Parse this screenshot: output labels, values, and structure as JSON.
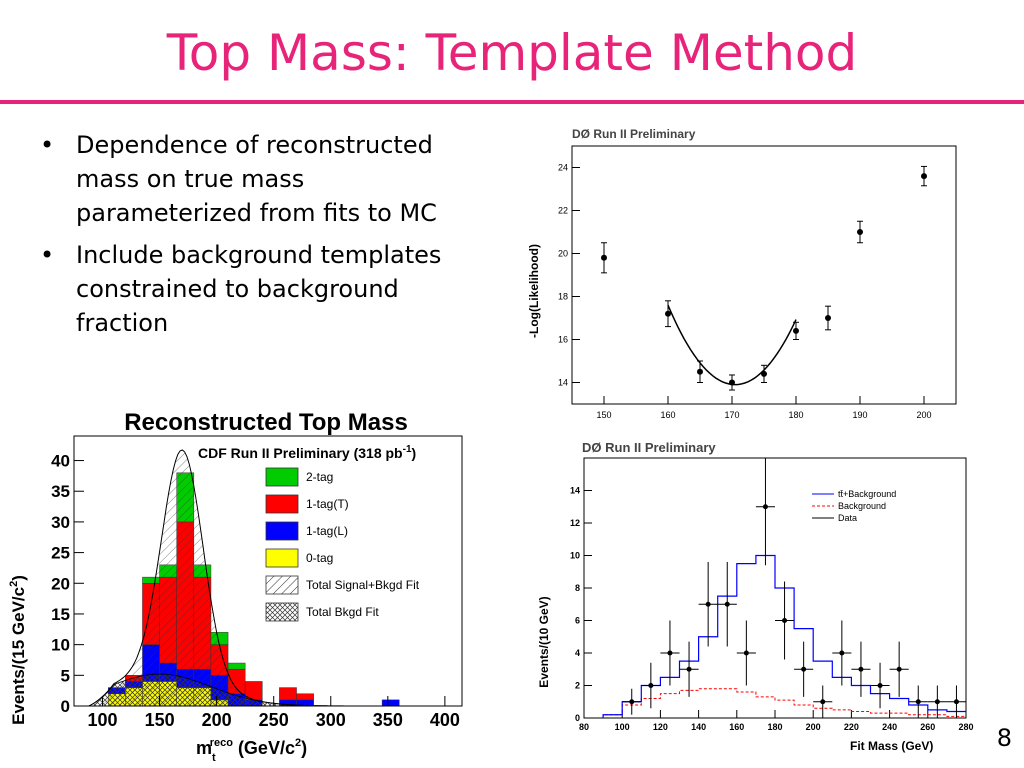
{
  "slide": {
    "title": "Top Mass: Template Method",
    "page_number": "8",
    "bullets": [
      "Dependence of reconstructed mass on true mass parameterized from fits to MC",
      "Include background templates constrained to background fraction"
    ]
  },
  "colors": {
    "accent": "#e8237a"
  },
  "chart_data": [
    {
      "type": "scatter",
      "title": "DØ Run II Preliminary",
      "xlabel": "",
      "ylabel": "-Log(Likelihood)",
      "xlim": [
        145,
        205
      ],
      "ylim": [
        13,
        25
      ],
      "x_ticks": [
        150,
        160,
        170,
        180,
        190,
        200
      ],
      "y_ticks": [
        14,
        16,
        18,
        20,
        22,
        24
      ],
      "points": [
        {
          "x": 150,
          "y": 19.8,
          "err": 0.7
        },
        {
          "x": 160,
          "y": 17.2,
          "err": 0.6
        },
        {
          "x": 165,
          "y": 14.5,
          "err": 0.5
        },
        {
          "x": 170,
          "y": 14.0,
          "err": 0.35
        },
        {
          "x": 175,
          "y": 14.4,
          "err": 0.4
        },
        {
          "x": 180,
          "y": 16.4,
          "err": 0.4
        },
        {
          "x": 185,
          "y": 17.0,
          "err": 0.55
        },
        {
          "x": 190,
          "y": 21.0,
          "err": 0.5
        },
        {
          "x": 200,
          "y": 23.6,
          "err": 0.45
        }
      ],
      "fit": {
        "type": "parabola",
        "x_min": 160,
        "x_max": 180,
        "center": 170.5,
        "min": 13.9,
        "curvature": 0.0335
      }
    },
    {
      "type": "bar",
      "title": "Reconstructed Top Mass",
      "subtitle": "CDF Run II Preliminary (318 pb",
      "subtitle_exp": "-1",
      "subtitle_close": ")",
      "xlabel": "m",
      "xlabel_sub": "t",
      "xlabel_sup": "reco",
      "xlabel_unit": " (GeV/c",
      "xlabel_unit_sup": "2",
      "xlabel_close": ")",
      "ylabel": "Events/(15 GeV/c",
      "ylabel_sup": "2",
      "ylabel_close": ")",
      "xlim": [
        75,
        415
      ],
      "ylim": [
        0,
        44
      ],
      "x_ticks": [
        100,
        150,
        200,
        250,
        300,
        350,
        400
      ],
      "y_ticks": [
        0,
        5,
        10,
        15,
        20,
        25,
        30,
        35,
        40
      ],
      "bin_edges": [
        105,
        120,
        135,
        150,
        165,
        180,
        195,
        210,
        225,
        240,
        255,
        270,
        285,
        300,
        315,
        330,
        345,
        360,
        375
      ],
      "series": [
        {
          "name": "0-tag",
          "color": "#ffff00",
          "values": [
            2,
            3,
            4,
            4,
            3,
            3,
            1,
            0,
            0,
            0,
            0,
            0,
            0,
            0,
            0,
            0,
            0,
            0
          ]
        },
        {
          "name": "1-tag(L)",
          "color": "#0000ff",
          "values": [
            1,
            1,
            6,
            3,
            3,
            3,
            4,
            2,
            1,
            0,
            1,
            1,
            0,
            0,
            0,
            0,
            1,
            0
          ]
        },
        {
          "name": "1-tag(T)",
          "color": "#ff0000",
          "values": [
            0,
            1,
            10,
            14,
            24,
            15,
            5,
            4,
            3,
            0,
            2,
            1,
            0,
            0,
            0,
            0,
            0,
            0
          ]
        },
        {
          "name": "2-tag",
          "color": "#00cc00",
          "values": [
            0,
            0,
            1,
            2,
            8,
            2,
            2,
            1,
            0,
            0,
            0,
            0,
            0,
            0,
            0,
            0,
            0,
            0
          ]
        }
      ],
      "legend": [
        {
          "label": "2-tag",
          "style": "green"
        },
        {
          "label": "1-tag(T)",
          "style": "red"
        },
        {
          "label": "1-tag(L)",
          "style": "blue"
        },
        {
          "label": "0-tag",
          "style": "yellow"
        },
        {
          "label": "Total Signal+Bkgd Fit",
          "style": "hatch"
        },
        {
          "label": "Total Bkgd Fit",
          "style": "crosshatch"
        }
      ]
    },
    {
      "type": "line",
      "title": "DØ Run II Preliminary",
      "xlabel": "Fit Mass (GeV)",
      "ylabel": "Events/(10 GeV)",
      "xlim": [
        80,
        280
      ],
      "ylim": [
        0,
        16
      ],
      "x_ticks": [
        80,
        100,
        120,
        140,
        160,
        180,
        200,
        220,
        240,
        260,
        280
      ],
      "y_ticks": [
        0,
        2,
        4,
        6,
        8,
        10,
        12,
        14
      ],
      "legend": [
        "tt̄+Background",
        "Background",
        "Data"
      ],
      "bin_edges": [
        90,
        100,
        110,
        120,
        130,
        140,
        150,
        160,
        170,
        180,
        190,
        200,
        210,
        220,
        230,
        240,
        250,
        260,
        270,
        280
      ],
      "signal_plus_bkg": [
        0.2,
        1,
        2,
        2.5,
        3.5,
        5,
        7.5,
        9.5,
        10,
        8,
        5.5,
        3.5,
        2.5,
        2,
        1.5,
        1.2,
        0.8,
        0.5,
        0.4
      ],
      "background": [
        0.2,
        0.8,
        1.2,
        1.5,
        1.7,
        1.8,
        1.8,
        1.6,
        1.3,
        1.1,
        0.8,
        0.6,
        0.5,
        0.4,
        0.3,
        0.3,
        0.2,
        0.2,
        0.1
      ],
      "data": [
        {
          "x": 105,
          "y": 1,
          "err": 0.8
        },
        {
          "x": 115,
          "y": 2,
          "err": 1.4
        },
        {
          "x": 125,
          "y": 4,
          "err": 2
        },
        {
          "x": 135,
          "y": 3,
          "err": 1.7
        },
        {
          "x": 145,
          "y": 7,
          "err": 2.6
        },
        {
          "x": 155,
          "y": 7,
          "err": 2.6
        },
        {
          "x": 165,
          "y": 4,
          "err": 2
        },
        {
          "x": 175,
          "y": 13,
          "err": 3.6
        },
        {
          "x": 185,
          "y": 6,
          "err": 2.4
        },
        {
          "x": 195,
          "y": 3,
          "err": 1.7
        },
        {
          "x": 205,
          "y": 1,
          "err": 1
        },
        {
          "x": 215,
          "y": 4,
          "err": 2
        },
        {
          "x": 225,
          "y": 3,
          "err": 1.7
        },
        {
          "x": 235,
          "y": 2,
          "err": 1.4
        },
        {
          "x": 245,
          "y": 3,
          "err": 1.7
        },
        {
          "x": 255,
          "y": 1,
          "err": 1
        },
        {
          "x": 265,
          "y": 1,
          "err": 1
        },
        {
          "x": 275,
          "y": 1,
          "err": 1
        }
      ]
    }
  ]
}
